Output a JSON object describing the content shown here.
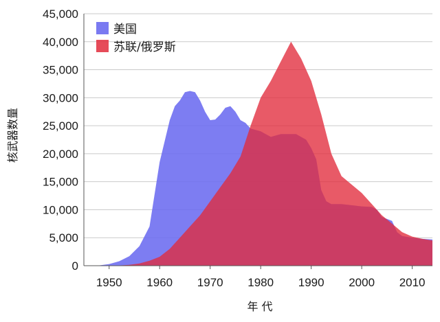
{
  "chart_data": {
    "type": "area",
    "xlabel": "年 代",
    "ylabel": "核武器数量",
    "xlim": [
      1945,
      2014
    ],
    "ylim": [
      0,
      45000
    ],
    "x_ticks": [
      1950,
      1960,
      1970,
      1980,
      1990,
      2000,
      2010
    ],
    "y_ticks": [
      0,
      5000,
      10000,
      15000,
      20000,
      25000,
      30000,
      35000,
      40000,
      45000
    ],
    "y_tick_labels": [
      "0",
      "5,000",
      "10,000",
      "15,000",
      "20,000",
      "25,000",
      "30,000",
      "35,000",
      "40,000",
      "45,000"
    ],
    "grid": "horizontal",
    "legend_position": "top-left",
    "series": [
      {
        "name": "美国",
        "color": "#6b6bf0",
        "points": [
          [
            1945,
            0
          ],
          [
            1948,
            50
          ],
          [
            1950,
            300
          ],
          [
            1952,
            800
          ],
          [
            1954,
            1700
          ],
          [
            1956,
            3500
          ],
          [
            1958,
            7000
          ],
          [
            1960,
            18500
          ],
          [
            1962,
            26000
          ],
          [
            1963,
            28500
          ],
          [
            1964,
            29500
          ],
          [
            1965,
            31000
          ],
          [
            1966,
            31200
          ],
          [
            1967,
            31000
          ],
          [
            1968,
            29500
          ],
          [
            1969,
            27500
          ],
          [
            1970,
            26000
          ],
          [
            1971,
            26100
          ],
          [
            1972,
            27000
          ],
          [
            1973,
            28200
          ],
          [
            1974,
            28500
          ],
          [
            1975,
            27500
          ],
          [
            1976,
            26000
          ],
          [
            1977,
            25500
          ],
          [
            1978,
            24500
          ],
          [
            1980,
            24000
          ],
          [
            1982,
            23000
          ],
          [
            1984,
            23500
          ],
          [
            1986,
            23500
          ],
          [
            1987,
            23500
          ],
          [
            1989,
            22500
          ],
          [
            1990,
            21000
          ],
          [
            1991,
            19000
          ],
          [
            1992,
            13500
          ],
          [
            1993,
            11500
          ],
          [
            1994,
            11000
          ],
          [
            1996,
            11000
          ],
          [
            1998,
            10800
          ],
          [
            2000,
            10600
          ],
          [
            2002,
            10500
          ],
          [
            2003,
            10000
          ],
          [
            2004,
            8700
          ],
          [
            2006,
            8000
          ],
          [
            2007,
            6000
          ],
          [
            2008,
            5300
          ],
          [
            2010,
            5000
          ],
          [
            2012,
            4800
          ],
          [
            2014,
            4700
          ]
        ]
      },
      {
        "name": "苏联/俄罗斯",
        "color": "#e22c3c",
        "points": [
          [
            1945,
            0
          ],
          [
            1949,
            0
          ],
          [
            1950,
            0
          ],
          [
            1952,
            50
          ],
          [
            1954,
            150
          ],
          [
            1956,
            400
          ],
          [
            1958,
            900
          ],
          [
            1960,
            1600
          ],
          [
            1962,
            3000
          ],
          [
            1964,
            5000
          ],
          [
            1966,
            7000
          ],
          [
            1968,
            9000
          ],
          [
            1970,
            11500
          ],
          [
            1972,
            14000
          ],
          [
            1974,
            16500
          ],
          [
            1976,
            19500
          ],
          [
            1978,
            25000
          ],
          [
            1980,
            30000
          ],
          [
            1982,
            33000
          ],
          [
            1984,
            36500
          ],
          [
            1986,
            40000
          ],
          [
            1988,
            37000
          ],
          [
            1990,
            33000
          ],
          [
            1992,
            27000
          ],
          [
            1994,
            20000
          ],
          [
            1996,
            16000
          ],
          [
            1998,
            14500
          ],
          [
            2000,
            13000
          ],
          [
            2002,
            11000
          ],
          [
            2004,
            9000
          ],
          [
            2006,
            7500
          ],
          [
            2008,
            6000
          ],
          [
            2010,
            5200
          ],
          [
            2012,
            4800
          ],
          [
            2014,
            4500
          ]
        ]
      }
    ]
  }
}
